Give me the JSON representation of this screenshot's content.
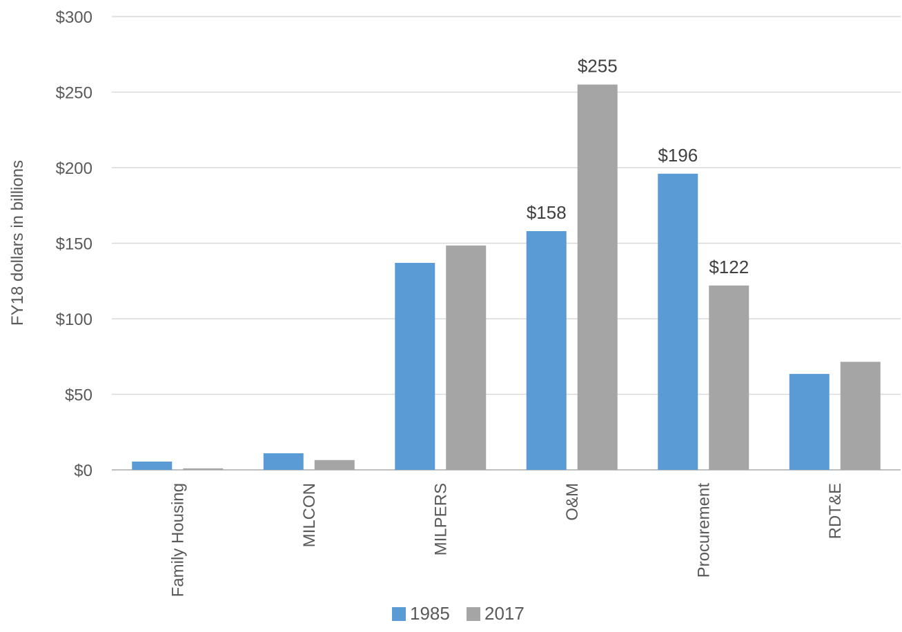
{
  "chart_data": {
    "type": "bar",
    "title": "",
    "xlabel": "",
    "ylabel": "FY18 dollars in billions",
    "categories": [
      "Family Housing",
      "MILCON",
      "MILPERS",
      "O&M",
      "Procurement",
      "RDT&E"
    ],
    "series": [
      {
        "name": "1985",
        "color": "#5b9bd5",
        "values": [
          5.5,
          11,
          137,
          158,
          196,
          63.5
        ]
      },
      {
        "name": "2017",
        "color": "#a5a5a5",
        "values": [
          1,
          6.5,
          148.5,
          255,
          122,
          71.5
        ]
      }
    ],
    "data_labels": [
      {
        "series": 0,
        "category": 3,
        "text": "$158"
      },
      {
        "series": 1,
        "category": 3,
        "text": "$255"
      },
      {
        "series": 0,
        "category": 4,
        "text": "$196"
      },
      {
        "series": 1,
        "category": 4,
        "text": "$122"
      }
    ],
    "ylim": [
      0,
      300
    ],
    "yticks": [
      0,
      50,
      100,
      150,
      200,
      250,
      300
    ],
    "ytick_labels": [
      "$0",
      "$50",
      "$100",
      "$150",
      "$200",
      "$250",
      "$300"
    ],
    "grid": true,
    "legend_position": "bottom"
  }
}
